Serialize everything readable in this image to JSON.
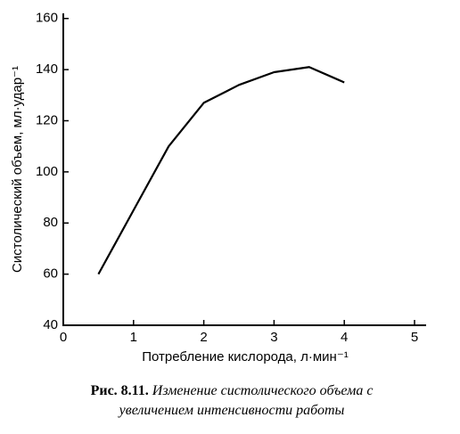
{
  "chart_data": {
    "type": "line",
    "x_label": "Потребление кислорода, л·мин⁻¹",
    "y_label": "Систолический объем, мл·удар⁻¹",
    "figure_label": "Рис. 8.11.",
    "caption": "Изменение систолического объема с увеличением интенсивности работы",
    "x": [
      0.5,
      1.0,
      1.5,
      2.0,
      2.5,
      3.0,
      3.5,
      4.0
    ],
    "series": [
      {
        "color": "#000000",
        "values": [
          60,
          85,
          110,
          127,
          134,
          139,
          141,
          135
        ]
      }
    ],
    "xlim": [
      0,
      5.15
    ],
    "xticks": [
      0,
      1,
      2,
      3,
      4,
      5
    ],
    "ylim": [
      40,
      162
    ],
    "yticks": [
      40,
      60,
      80,
      100,
      120,
      140,
      160
    ]
  }
}
